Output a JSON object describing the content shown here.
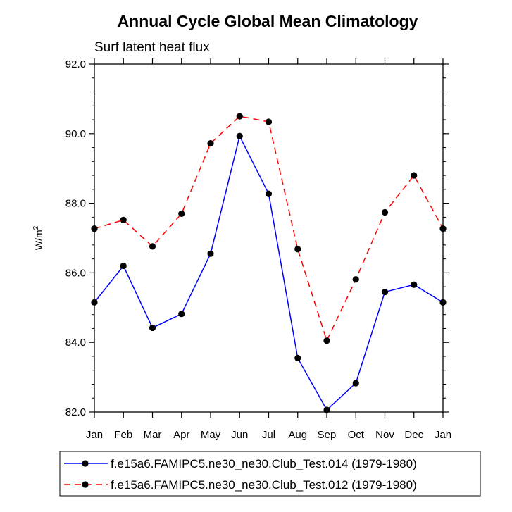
{
  "chart_data": {
    "type": "line",
    "title": "Annual Cycle Global Mean Climatology",
    "subtitle": "Surf latent heat flux",
    "xlabel": "",
    "ylabel": "W/m",
    "ylabel_superscript": "2",
    "categories": [
      "Jan",
      "Feb",
      "Mar",
      "Apr",
      "May",
      "Jun",
      "Jul",
      "Aug",
      "Sep",
      "Oct",
      "Nov",
      "Dec",
      "Jan"
    ],
    "ylim": [
      82.0,
      92.0
    ],
    "yticks": [
      82.0,
      84.0,
      86.0,
      88.0,
      90.0,
      92.0
    ],
    "ytick_labels": [
      "82.0",
      "84.0",
      "86.0",
      "88.0",
      "90.0",
      "92.0"
    ],
    "legend_position": "bottom",
    "series": [
      {
        "name": "f.e15a6.FAMIPC5.ne30_ne30.Club_Test.014 (1979-1980)",
        "color": "#0000ff",
        "dash": "solid",
        "values": [
          85.15,
          86.2,
          84.42,
          84.82,
          86.55,
          89.93,
          88.27,
          83.55,
          82.06,
          82.83,
          85.45,
          85.66,
          85.15
        ]
      },
      {
        "name": "f.e15a6.FAMIPC5.ne30_ne30.Club_Test.012 (1979-1980)",
        "color": "#ff0000",
        "dash": "dashed",
        "values": [
          87.27,
          87.52,
          86.76,
          87.7,
          89.72,
          90.5,
          90.34,
          86.68,
          84.05,
          85.81,
          87.74,
          88.8,
          87.27
        ]
      }
    ]
  }
}
